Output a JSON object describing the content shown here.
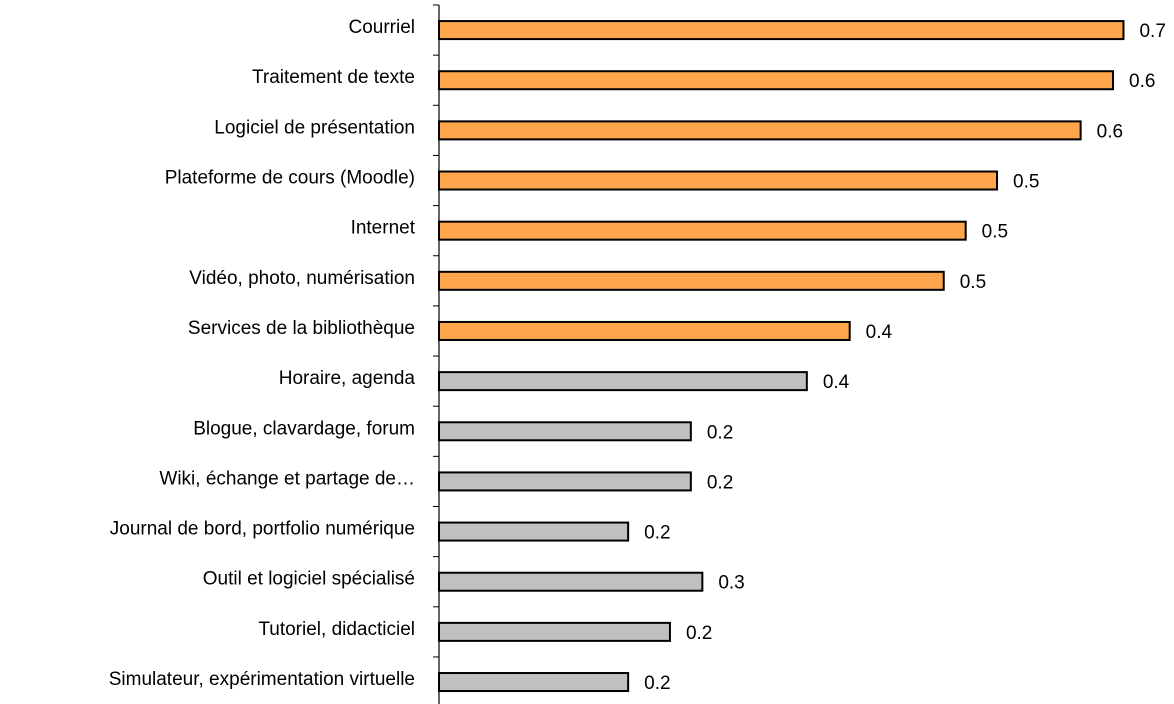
{
  "chart_data": {
    "type": "hbar",
    "categories": [
      "Courriel",
      "Traitement de texte",
      "Logiciel de présentation",
      "Plateforme de cours (Moodle)",
      "Internet",
      "Vidéo, photo, numérisation",
      "Services de la bibliothèque",
      "Horaire, agenda",
      "Blogue, clavardage, forum",
      "Wiki, échange et partage de…",
      "Journal de bord, portfolio numérique",
      "Outil et logiciel spécialisé",
      "Tutoriel, didacticiel",
      "Simulateur, expérimentation virtuelle"
    ],
    "values": [
      0.655,
      0.645,
      0.614,
      0.534,
      0.504,
      0.483,
      0.393,
      0.352,
      0.241,
      0.241,
      0.181,
      0.252,
      0.221,
      0.181
    ],
    "value_labels": [
      "0.7",
      "0.6",
      "0.6",
      "0.5",
      "0.5",
      "0.5",
      "0.4",
      "0.4",
      "0.2",
      "0.2",
      "0.2",
      "0.3",
      "0.2",
      "0.2"
    ],
    "colors": [
      "#FFA64D",
      "#FFA64D",
      "#FFA64D",
      "#FFA64D",
      "#FFA64D",
      "#FFA64D",
      "#FFA64D",
      "#C0C0C0",
      "#C0C0C0",
      "#C0C0C0",
      "#C0C0C0",
      "#C0C0C0",
      "#C0C0C0",
      "#C0C0C0"
    ],
    "xlim": [
      0,
      0.7
    ]
  }
}
